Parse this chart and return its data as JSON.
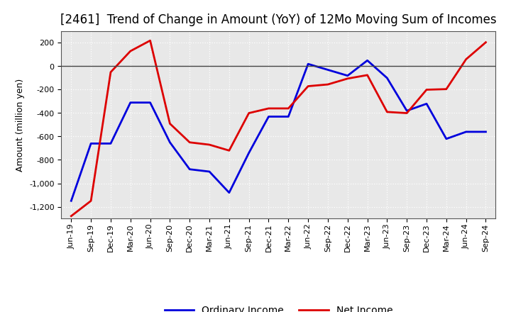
{
  "title": "[2461]  Trend of Change in Amount (YoY) of 12Mo Moving Sum of Incomes",
  "ylabel": "Amount (million yen)",
  "background_color": "#ffffff",
  "plot_bg_color": "#e8e8e8",
  "grid_color": "#ffffff",
  "ordinary_income_color": "#0000dd",
  "net_income_color": "#dd0000",
  "line_width": 2.0,
  "ylim": [
    -1300,
    300
  ],
  "yticks": [
    -1200,
    -1000,
    -800,
    -600,
    -400,
    -200,
    0,
    200
  ],
  "labels": [
    "Jun-19",
    "Sep-19",
    "Dec-19",
    "Mar-20",
    "Jun-20",
    "Sep-20",
    "Dec-20",
    "Mar-21",
    "Jun-21",
    "Sep-21",
    "Dec-21",
    "Mar-22",
    "Jun-22",
    "Sep-22",
    "Dec-22",
    "Mar-23",
    "Jun-23",
    "Sep-23",
    "Dec-23",
    "Mar-24",
    "Jun-24",
    "Sep-24"
  ],
  "ordinary_income": [
    -1150,
    -660,
    -660,
    -310,
    -310,
    -650,
    -880,
    -900,
    -1080,
    -740,
    -430,
    -430,
    20,
    -30,
    -80,
    50,
    -100,
    -380,
    -320,
    -620,
    -560,
    -560
  ],
  "net_income": [
    -1280,
    -1150,
    -50,
    130,
    220,
    -490,
    -650,
    -670,
    -720,
    -400,
    -360,
    -360,
    -170,
    -155,
    -105,
    -75,
    -390,
    -400,
    -200,
    -195,
    60,
    205
  ],
  "legend_ordinary": "Ordinary Income",
  "legend_net": "Net Income",
  "title_fontsize": 12,
  "axis_fontsize": 9,
  "tick_fontsize": 8,
  "legend_fontsize": 10
}
